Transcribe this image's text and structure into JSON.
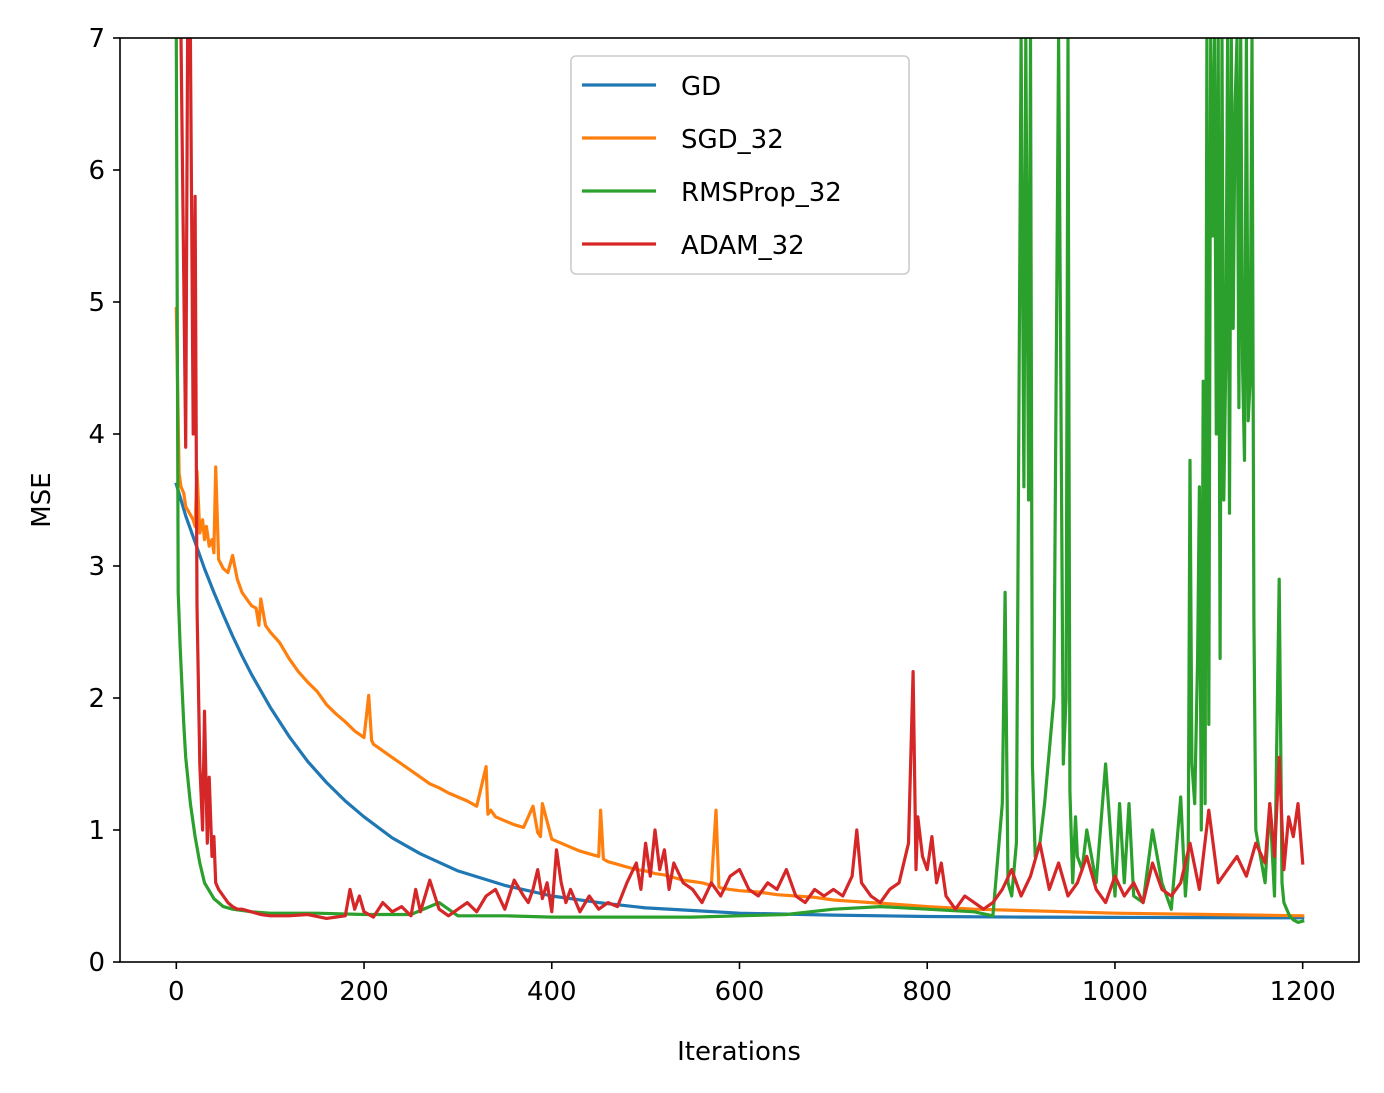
{
  "chart_data": {
    "type": "line",
    "title": "",
    "xlabel": "Iterations",
    "ylabel": "MSE",
    "xlim": [
      -60,
      1260
    ],
    "ylim": [
      0,
      7
    ],
    "xticks": [
      "0",
      "200",
      "400",
      "600",
      "800",
      "1000",
      "1200"
    ],
    "yticks": [
      "0",
      "1",
      "2",
      "3",
      "4",
      "5",
      "6",
      "7"
    ],
    "grid": false,
    "legend_position": "top-center",
    "series": [
      {
        "name": "GD",
        "color": "#1f77b4",
        "x": [
          0,
          5,
          10,
          20,
          30,
          40,
          50,
          60,
          70,
          80,
          100,
          120,
          140,
          160,
          180,
          200,
          230,
          260,
          300,
          350,
          400,
          450,
          500,
          550,
          600,
          700,
          800,
          900,
          1000,
          1100,
          1200
        ],
        "y": [
          3.62,
          3.5,
          3.38,
          3.18,
          2.98,
          2.8,
          2.63,
          2.47,
          2.32,
          2.18,
          1.93,
          1.71,
          1.52,
          1.36,
          1.22,
          1.1,
          0.94,
          0.82,
          0.69,
          0.58,
          0.5,
          0.45,
          0.41,
          0.39,
          0.37,
          0.355,
          0.345,
          0.34,
          0.338,
          0.336,
          0.335
        ]
      },
      {
        "name": "SGD_32",
        "color": "#ff7f0e",
        "x": [
          0,
          3,
          5,
          8,
          10,
          14,
          18,
          20,
          22,
          25,
          28,
          30,
          32,
          35,
          38,
          40,
          42,
          45,
          50,
          55,
          60,
          65,
          70,
          75,
          80,
          85,
          88,
          90,
          95,
          100,
          110,
          120,
          130,
          140,
          150,
          160,
          170,
          180,
          190,
          200,
          205,
          208,
          210,
          220,
          230,
          240,
          250,
          260,
          270,
          280,
          290,
          300,
          310,
          320,
          330,
          332,
          335,
          340,
          350,
          360,
          370,
          380,
          385,
          388,
          390,
          400,
          410,
          420,
          430,
          440,
          450,
          452,
          455,
          460,
          470,
          480,
          490,
          500,
          510,
          520,
          530,
          540,
          550,
          560,
          570,
          575,
          578,
          580,
          590,
          600,
          620,
          640,
          660,
          680,
          700,
          720,
          740,
          760,
          780,
          800,
          850,
          900,
          950,
          1000,
          1050,
          1100,
          1150,
          1200
        ],
        "y": [
          4.95,
          3.7,
          3.6,
          3.55,
          3.45,
          3.4,
          3.35,
          3.3,
          3.72,
          3.25,
          3.35,
          3.2,
          3.3,
          3.15,
          3.2,
          3.1,
          3.75,
          3.05,
          2.98,
          2.95,
          3.08,
          2.9,
          2.8,
          2.75,
          2.7,
          2.68,
          2.55,
          2.75,
          2.55,
          2.5,
          2.42,
          2.3,
          2.2,
          2.12,
          2.05,
          1.95,
          1.88,
          1.82,
          1.75,
          1.7,
          2.02,
          1.68,
          1.65,
          1.6,
          1.55,
          1.5,
          1.45,
          1.4,
          1.35,
          1.32,
          1.28,
          1.25,
          1.22,
          1.18,
          1.48,
          1.12,
          1.15,
          1.1,
          1.07,
          1.04,
          1.02,
          1.18,
          0.98,
          0.95,
          1.2,
          0.93,
          0.9,
          0.87,
          0.84,
          0.82,
          0.8,
          1.15,
          0.78,
          0.76,
          0.74,
          0.72,
          0.7,
          0.69,
          0.67,
          0.66,
          0.64,
          0.62,
          0.61,
          0.6,
          0.58,
          1.15,
          0.57,
          0.56,
          0.55,
          0.54,
          0.53,
          0.51,
          0.5,
          0.49,
          0.47,
          0.46,
          0.45,
          0.44,
          0.43,
          0.42,
          0.4,
          0.39,
          0.38,
          0.37,
          0.365,
          0.36,
          0.355,
          0.35
        ]
      },
      {
        "name": "RMSProp_32",
        "color": "#2ca02c",
        "x": [
          0,
          2,
          4,
          6,
          8,
          10,
          15,
          20,
          25,
          30,
          40,
          50,
          60,
          80,
          100,
          150,
          200,
          250,
          280,
          300,
          350,
          400,
          450,
          500,
          550,
          600,
          650,
          700,
          750,
          800,
          850,
          870,
          880,
          883,
          886,
          890,
          895,
          900,
          903,
          905,
          908,
          910,
          912,
          915,
          920,
          925,
          930,
          935,
          940,
          945,
          948,
          950,
          952,
          955,
          958,
          960,
          965,
          970,
          980,
          990,
          1000,
          1005,
          1010,
          1015,
          1020,
          1030,
          1040,
          1050,
          1060,
          1070,
          1075,
          1078,
          1080,
          1082,
          1085,
          1088,
          1090,
          1092,
          1094,
          1096,
          1098,
          1100,
          1102,
          1104,
          1106,
          1108,
          1110,
          1112,
          1114,
          1116,
          1118,
          1120,
          1122,
          1124,
          1126,
          1128,
          1130,
          1132,
          1134,
          1136,
          1138,
          1140,
          1142,
          1144,
          1146,
          1148,
          1150,
          1155,
          1160,
          1165,
          1170,
          1175,
          1178,
          1180,
          1183,
          1186,
          1190,
          1195,
          1200
        ],
        "y": [
          7.0,
          2.8,
          2.4,
          2.1,
          1.8,
          1.55,
          1.2,
          0.95,
          0.75,
          0.6,
          0.48,
          0.42,
          0.4,
          0.38,
          0.37,
          0.37,
          0.36,
          0.36,
          0.45,
          0.35,
          0.35,
          0.34,
          0.34,
          0.34,
          0.34,
          0.35,
          0.36,
          0.4,
          0.42,
          0.4,
          0.38,
          0.35,
          1.2,
          2.8,
          0.6,
          0.5,
          0.9,
          7.0,
          3.6,
          7.0,
          3.5,
          7.0,
          1.5,
          0.8,
          0.9,
          1.2,
          1.6,
          2.0,
          7.0,
          1.5,
          2.0,
          7.0,
          1.3,
          0.6,
          1.1,
          0.8,
          0.7,
          1.0,
          0.6,
          1.5,
          0.5,
          1.2,
          0.6,
          1.2,
          0.5,
          0.45,
          1.0,
          0.6,
          0.4,
          1.25,
          0.5,
          0.8,
          3.8,
          1.5,
          1.2,
          2.3,
          3.6,
          1.0,
          4.4,
          1.2,
          7.0,
          1.8,
          7.0,
          5.5,
          7.0,
          4.0,
          7.0,
          2.3,
          7.0,
          3.5,
          4.5,
          7.0,
          3.4,
          7.0,
          4.8,
          6.5,
          7.0,
          4.2,
          7.0,
          4.5,
          3.8,
          7.0,
          4.1,
          4.4,
          7.0,
          2.6,
          1.0,
          0.8,
          0.6,
          1.2,
          0.5,
          2.9,
          0.6,
          0.45,
          0.4,
          0.35,
          0.32,
          0.3,
          0.31
        ]
      },
      {
        "name": "ADAM_32",
        "color": "#d62728",
        "x": [
          5,
          10,
          12,
          15,
          18,
          20,
          22,
          25,
          28,
          30,
          33,
          35,
          38,
          40,
          42,
          45,
          50,
          55,
          60,
          65,
          70,
          80,
          90,
          100,
          120,
          140,
          160,
          180,
          185,
          190,
          195,
          200,
          210,
          220,
          230,
          240,
          250,
          255,
          260,
          270,
          280,
          290,
          300,
          310,
          320,
          330,
          340,
          350,
          360,
          370,
          375,
          380,
          385,
          390,
          395,
          400,
          405,
          410,
          415,
          420,
          430,
          440,
          450,
          460,
          470,
          480,
          490,
          495,
          500,
          505,
          510,
          515,
          520,
          525,
          530,
          540,
          550,
          560,
          570,
          580,
          590,
          600,
          610,
          620,
          630,
          640,
          650,
          660,
          670,
          680,
          690,
          700,
          710,
          720,
          725,
          730,
          740,
          750,
          760,
          770,
          775,
          780,
          785,
          788,
          790,
          795,
          800,
          805,
          810,
          815,
          820,
          830,
          840,
          850,
          860,
          870,
          880,
          890,
          900,
          910,
          920,
          930,
          940,
          950,
          960,
          970,
          980,
          990,
          1000,
          1010,
          1020,
          1030,
          1040,
          1050,
          1060,
          1070,
          1080,
          1090,
          1100,
          1110,
          1120,
          1130,
          1140,
          1150,
          1160,
          1165,
          1170,
          1175,
          1180,
          1185,
          1190,
          1195,
          1200
        ],
        "y": [
          7.0,
          3.9,
          7.0,
          7.0,
          4.0,
          5.8,
          2.7,
          1.5,
          1.0,
          1.9,
          0.9,
          1.4,
          0.8,
          0.95,
          0.6,
          0.55,
          0.5,
          0.45,
          0.42,
          0.4,
          0.4,
          0.38,
          0.36,
          0.35,
          0.35,
          0.36,
          0.33,
          0.35,
          0.55,
          0.4,
          0.5,
          0.38,
          0.34,
          0.45,
          0.38,
          0.42,
          0.35,
          0.55,
          0.38,
          0.62,
          0.4,
          0.35,
          0.4,
          0.45,
          0.38,
          0.5,
          0.55,
          0.4,
          0.62,
          0.5,
          0.45,
          0.55,
          0.7,
          0.48,
          0.6,
          0.38,
          0.85,
          0.6,
          0.45,
          0.55,
          0.38,
          0.5,
          0.4,
          0.45,
          0.42,
          0.6,
          0.75,
          0.55,
          0.9,
          0.65,
          1.0,
          0.7,
          0.85,
          0.55,
          0.75,
          0.6,
          0.55,
          0.45,
          0.6,
          0.5,
          0.65,
          0.7,
          0.55,
          0.5,
          0.6,
          0.55,
          0.7,
          0.5,
          0.45,
          0.55,
          0.5,
          0.55,
          0.5,
          0.65,
          1.0,
          0.6,
          0.5,
          0.45,
          0.55,
          0.6,
          0.75,
          0.9,
          2.2,
          0.7,
          1.1,
          0.8,
          0.7,
          0.95,
          0.6,
          0.75,
          0.5,
          0.4,
          0.5,
          0.45,
          0.4,
          0.45,
          0.55,
          0.7,
          0.5,
          0.65,
          0.9,
          0.55,
          0.75,
          0.5,
          0.6,
          0.8,
          0.55,
          0.45,
          0.65,
          0.5,
          0.6,
          0.45,
          0.75,
          0.55,
          0.5,
          0.6,
          0.9,
          0.55,
          1.15,
          0.6,
          0.7,
          0.8,
          0.65,
          0.9,
          0.75,
          1.2,
          0.8,
          1.55,
          0.7,
          1.1,
          0.95,
          1.2,
          0.75
        ]
      }
    ]
  }
}
